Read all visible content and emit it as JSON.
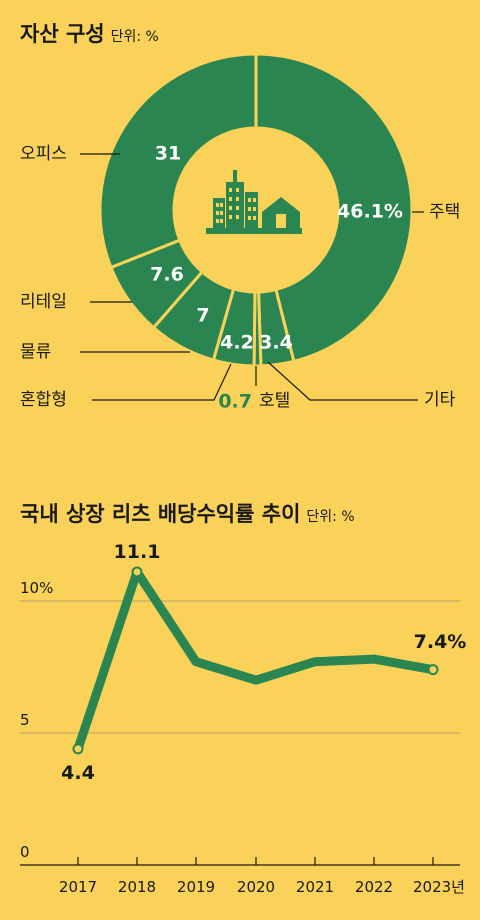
{
  "chart_data": [
    {
      "type": "pie",
      "title": "자산 구성",
      "unit": "단위: %",
      "slices": [
        {
          "label": "주택",
          "value": 46.1,
          "display": "46.1%"
        },
        {
          "label": "기타",
          "value": 3.4,
          "display": "3.4"
        },
        {
          "label": "호텔",
          "value": 0.7,
          "display": "0.7"
        },
        {
          "label": "혼합형",
          "value": 4.2,
          "display": "4.2"
        },
        {
          "label": "물류",
          "value": 7,
          "display": "7"
        },
        {
          "label": "리테일",
          "value": 7.6,
          "display": "7.6"
        },
        {
          "label": "오피스",
          "value": 31,
          "display": "31"
        }
      ],
      "colors": {
        "slice": "#2A8550",
        "background": "#FAD25A",
        "highlight": "#2A8550"
      }
    },
    {
      "type": "line",
      "title": "국내 상장 리츠 배당수익률 추이",
      "unit": "단위: %",
      "categories": [
        "2017",
        "2018",
        "2019",
        "2020",
        "2021",
        "2022",
        "2023년"
      ],
      "values": [
        4.4,
        11.1,
        7.7,
        7.0,
        7.7,
        7.8,
        7.4
      ],
      "point_labels": [
        {
          "index": 0,
          "text": "4.4"
        },
        {
          "index": 1,
          "text": "11.1"
        },
        {
          "index": 6,
          "text": "7.4%"
        }
      ],
      "yticks": [
        "0",
        "5",
        "10%"
      ],
      "ylim": [
        0,
        12
      ],
      "grid": true,
      "colors": {
        "line": "#2A8550",
        "grid": "#B8A36A"
      }
    }
  ]
}
